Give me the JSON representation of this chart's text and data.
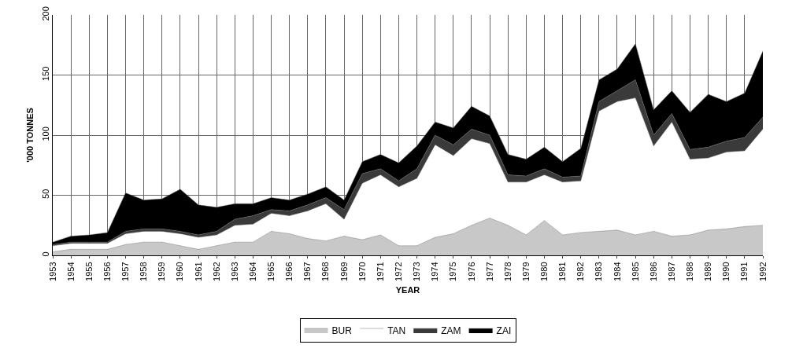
{
  "chart_data": {
    "type": "area",
    "stacked": true,
    "xlabel": "YEAR",
    "ylabel": "'000 TONNES",
    "categories": [
      "1953",
      "1954",
      "1955",
      "1956",
      "1957",
      "1958",
      "1959",
      "1960",
      "1961",
      "1962",
      "1963",
      "1964",
      "1965",
      "1966",
      "1967",
      "1968",
      "1969",
      "1970",
      "1971",
      "1972",
      "1973",
      "1974",
      "1975",
      "1976",
      "1977",
      "1978",
      "1979",
      "1980",
      "1981",
      "1982",
      "1983",
      "1984",
      "1985",
      "1986",
      "1987",
      "1988",
      "1989",
      "1990",
      "1991",
      "1992"
    ],
    "series": [
      {
        "name": "BUR",
        "color": "#c8c8c8",
        "values": [
          3,
          5,
          5,
          5,
          9,
          11,
          11,
          8,
          5,
          8,
          11,
          11,
          20,
          18,
          14,
          12,
          16,
          13,
          17,
          8,
          8,
          15,
          18,
          25,
          31,
          25,
          17,
          29,
          17,
          19,
          20,
          21,
          17,
          20,
          16,
          17,
          21,
          22,
          24,
          25
        ]
      },
      {
        "name": "TAN",
        "color": "#ffffff",
        "values": [
          5,
          5,
          5,
          5,
          9,
          9,
          9,
          10,
          10,
          9,
          14,
          15,
          15,
          15,
          23,
          31,
          14,
          47,
          50,
          49,
          56,
          77,
          65,
          72,
          62,
          36,
          44,
          38,
          44,
          43,
          100,
          107,
          114,
          71,
          95,
          63,
          60,
          64,
          63,
          80
        ]
      },
      {
        "name": "ZAM",
        "color": "#3a3a3a",
        "values": [
          1,
          1,
          1,
          1,
          2,
          2,
          2,
          2,
          2,
          3,
          5,
          7,
          3,
          4,
          5,
          5,
          8,
          8,
          5,
          5,
          8,
          8,
          9,
          8,
          7,
          6,
          5,
          5,
          4,
          4,
          8,
          9,
          15,
          9,
          7,
          8,
          9,
          9,
          11,
          10
        ]
      },
      {
        "name": "ZAI",
        "color": "#000000",
        "values": [
          2,
          5,
          6,
          8,
          32,
          24,
          25,
          35,
          25,
          20,
          13,
          10,
          10,
          9,
          9,
          9,
          8,
          10,
          12,
          15,
          19,
          11,
          14,
          19,
          16,
          17,
          14,
          18,
          13,
          23,
          18,
          18,
          30,
          21,
          19,
          31,
          44,
          33,
          37,
          55
        ]
      }
    ],
    "ylim": [
      0,
      200
    ],
    "yticks": [
      0,
      50,
      100,
      150,
      200
    ],
    "grid": true,
    "legend": "bottom"
  }
}
